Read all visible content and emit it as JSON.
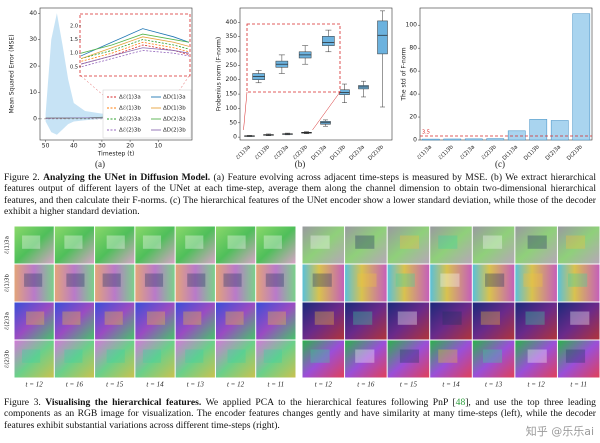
{
  "chart_data": [
    {
      "type": "line",
      "ylabel": "Mean Squared Error (MSE)",
      "xlabel": "Timestep (t)",
      "xlim": [
        52,
        -2
      ],
      "xticks": [
        50,
        40,
        30,
        20,
        10
      ],
      "ylim": [
        -8,
        42
      ],
      "yticks": [
        0,
        10,
        20,
        30,
        40
      ],
      "band": {
        "color": "#b9dcf2",
        "x": [
          50,
          48,
          46,
          44,
          42,
          40,
          36,
          30,
          20,
          10,
          1
        ],
        "upper": [
          2,
          30,
          40,
          28,
          15,
          6,
          3,
          2,
          2,
          2,
          2
        ],
        "lower": [
          -1,
          -5,
          -6,
          -4,
          -2,
          -1,
          -0.5,
          0,
          0,
          0,
          0
        ]
      },
      "x": [
        50,
        35,
        22,
        18,
        14,
        10,
        6,
        1
      ],
      "series": [
        {
          "name": "Δℰ(1)3a",
          "color": "#d62728",
          "dashed": true,
          "values": [
            0.2,
            0.3,
            0.6,
            0.9,
            1.3,
            1.1,
            0.8,
            0.6
          ]
        },
        {
          "name": "Δℰ(1)3b",
          "color": "#ff7f0e",
          "dashed": true,
          "values": [
            0.2,
            0.3,
            0.7,
            1.0,
            1.4,
            1.2,
            0.9,
            0.7
          ]
        },
        {
          "name": "Δℰ(2)3a",
          "color": "#2ca02c",
          "dashed": true,
          "values": [
            0.2,
            0.3,
            0.8,
            1.1,
            1.5,
            1.3,
            1.0,
            0.8
          ]
        },
        {
          "name": "Δℰ(2)3b",
          "color": "#9467bd",
          "dashed": true,
          "values": [
            0.2,
            0.3,
            0.5,
            0.8,
            1.1,
            1.0,
            0.8,
            0.6
          ]
        },
        {
          "name": "ΔD(1)3a",
          "color": "#1f77b4",
          "dashed": false,
          "values": [
            0.3,
            0.4,
            0.9,
            1.4,
            1.9,
            1.6,
            1.2,
            1.0
          ]
        },
        {
          "name": "ΔD(1)3b",
          "color": "#e6a23c",
          "dashed": false,
          "values": [
            0.3,
            0.4,
            0.8,
            1.2,
            1.6,
            1.4,
            1.1,
            0.9
          ]
        },
        {
          "name": "ΔD(2)3a",
          "color": "#54b34a",
          "dashed": false,
          "values": [
            0.3,
            0.4,
            1.0,
            1.3,
            1.7,
            1.5,
            1.3,
            2.5
          ]
        },
        {
          "name": "ΔD(2)3b",
          "color": "#8c6bb1",
          "dashed": false,
          "values": [
            0.3,
            0.4,
            0.6,
            0.9,
            1.2,
            1.1,
            0.9,
            0.7
          ]
        }
      ],
      "inset": {
        "xlim": [
          22,
          8
        ],
        "ylim": [
          0.2,
          2.4
        ],
        "yticks": [
          {
            "value": 0.5,
            "label": "0.5"
          },
          {
            "value": 1,
            "label": "1.0"
          },
          {
            "value": 1.5,
            "label": "1.5"
          },
          {
            "value": 2,
            "label": "2.0"
          }
        ]
      },
      "caption": "(a)"
    },
    {
      "type": "box",
      "ylabel": "Frobenius norm (F-norm)",
      "color": "#6cb2de",
      "categories": [
        "ℰ(1)3a",
        "ℰ(1)3b",
        "ℰ(2)3a",
        "ℰ(2)3b",
        "D(1)3a",
        "D(1)3b",
        "D(2)3a",
        "D(2)3b"
      ],
      "boxes": [
        {
          "whislo": 2,
          "q1": 3,
          "med": 4,
          "q3": 5,
          "whishi": 6
        },
        {
          "whislo": 5,
          "q1": 7,
          "med": 8,
          "q3": 9,
          "whishi": 11
        },
        {
          "whislo": 8,
          "q1": 10,
          "med": 11,
          "q3": 12,
          "whishi": 14
        },
        {
          "whislo": 12,
          "q1": 14,
          "med": 15,
          "q3": 17,
          "whishi": 19
        },
        {
          "whislo": 38,
          "q1": 45,
          "med": 50,
          "q3": 55,
          "whishi": 60
        },
        {
          "whislo": 120,
          "q1": 148,
          "med": 155,
          "q3": 165,
          "whishi": 185
        },
        {
          "whislo": 140,
          "q1": 168,
          "med": 175,
          "q3": 180,
          "whishi": 195
        },
        {
          "whislo": 105,
          "q1": 290,
          "med": 355,
          "q3": 405,
          "whishi": 440
        }
      ],
      "ylim": [
        -10,
        450
      ],
      "yticks": [
        0,
        50,
        100,
        150,
        200,
        250,
        300,
        350,
        400
      ],
      "inset": {
        "ylim": [
          0,
          20
        ]
      },
      "caption": "(b)"
    },
    {
      "type": "bar",
      "ylabel": "The std of F-norm",
      "color": "#a9d4ef",
      "edge": "#3b8bc2",
      "categories": [
        "ℰ(1)3a",
        "ℰ(1)3b",
        "ℰ(2)3a",
        "ℰ(2)3b",
        "D(1)3a",
        "D(1)3b",
        "D(2)3a",
        "D(2)3b"
      ],
      "values": [
        0.8,
        0.9,
        1.0,
        1.2,
        8,
        18,
        17,
        110
      ],
      "ylim": [
        0,
        115
      ],
      "yticks": [
        0,
        20,
        40,
        60,
        80,
        100
      ],
      "threshold": 3.5,
      "threshold_color": "#d62728",
      "caption": "(c)"
    }
  ],
  "figure2": {
    "label": "Figure 2.",
    "title": "Analyzing the UNet in Diffusion Model.",
    "text": "(a) Feature evolving across adjacent time-steps is measured by MSE. (b) We extract hierarchical features output of different layers of the UNet at each time-step, average them along the channel dimension to obtain two-dimensional hierarchical features, and then calculate their F-norms. (c) The hierarchical features of the UNet encoder show a lower standard deviation, while those of the decoder exhibit a higher standard deviation."
  },
  "figure3": {
    "left": {
      "row_labels": [
        "ℰ(1)3a",
        "ℰ(1)3b",
        "ℰ(2)3a",
        "ℰ(2)3b"
      ],
      "time_labels": [
        "t = 12",
        "t = 16",
        "t = 15",
        "t = 14",
        "t = 13",
        "t = 12",
        "t = 11"
      ]
    },
    "right": {
      "time_labels": [
        "t = 12",
        "t = 16",
        "t = 15",
        "t = 14",
        "t = 13",
        "t = 12",
        "t = 11"
      ]
    },
    "label": "Figure 3.",
    "title": "Visualising the hierarchical features.",
    "text_pre": "We applied PCA to the hierarchical features following PnP [",
    "ref": "48",
    "text_post": "], and use the top three leading components as an RGB image for visualization. The encoder features changes gently and have similarity at many time-steps (left), while the decoder features exhibit substantial variations across different time-steps (right)."
  },
  "watermark": "知乎 @乐乐ai"
}
